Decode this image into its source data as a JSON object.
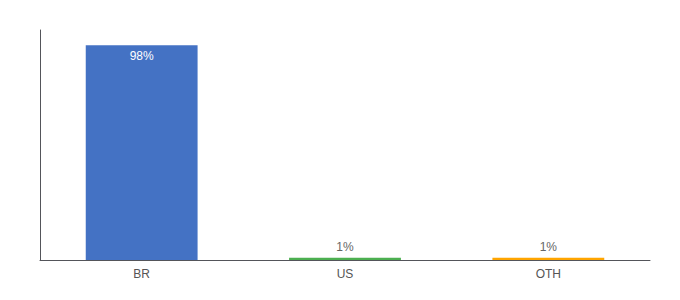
{
  "chart_data": {
    "type": "bar",
    "categories": [
      "BR",
      "US",
      "OTH"
    ],
    "values": [
      98,
      1,
      1
    ],
    "value_labels": [
      "98%",
      "1%",
      "1%"
    ],
    "colors": [
      "#4472c4",
      "#4caf50",
      "#ffa500"
    ],
    "ylim": [
      0,
      105
    ],
    "data_labels": true,
    "tick_labels": "x",
    "grid": false
  }
}
